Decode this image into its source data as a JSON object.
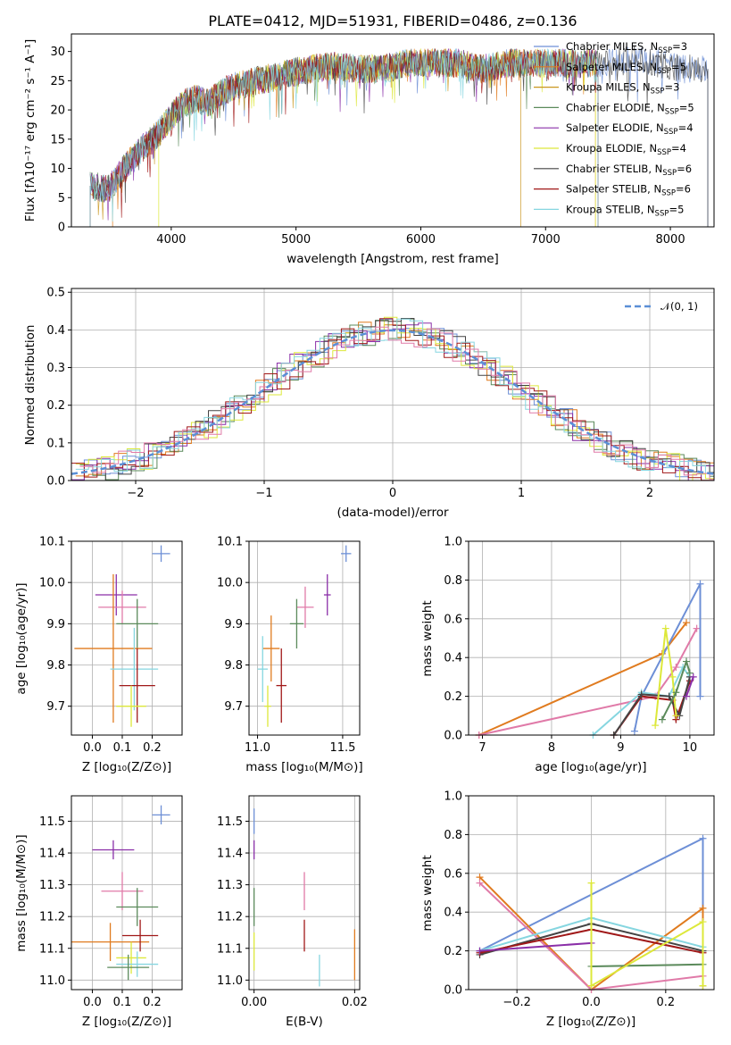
{
  "title": "PLATE=0412, MJD=51931, FIBERID=0486, z=0.136",
  "panels": {
    "spectrum": {
      "xlabel": "wavelength [Angstrom, rest frame]",
      "ylabel": "Flux [fλ10⁻¹⁷ erg cm⁻² s⁻¹ A⁻¹]",
      "xticks": [
        "4000",
        "5000",
        "6000",
        "7000",
        "8000"
      ],
      "yticks": [
        "0",
        "5",
        "10",
        "15",
        "20",
        "25",
        "30"
      ]
    },
    "hist": {
      "xlabel": "(data-model)/error",
      "ylabel": "Normed distribution",
      "xticks": [
        "−2",
        "−1",
        "0",
        "1",
        "2"
      ],
      "yticks": [
        "0.0",
        "0.1",
        "0.2",
        "0.3",
        "0.4",
        "0.5"
      ],
      "legend": "𝒩(0, 1)"
    },
    "age_Z": {
      "xlabel": "Z [log₁₀(Z/Z⊙)]",
      "ylabel": "age  [log₁₀(age/yr)]"
    },
    "age_mass": {
      "xlabel": "mass [log₁₀(M/M⊙)]"
    },
    "weight_age": {
      "xlabel": "age  [log₁₀(age/yr)]",
      "ylabel": "mass weight"
    },
    "mass_Z": {
      "xlabel": "Z [log₁₀(Z/Z⊙)]",
      "ylabel": "mass [log₁₀(M/M⊙)]"
    },
    "mass_ebv": {
      "xlabel": "E(B-V)"
    },
    "weight_Z": {
      "xlabel": "Z [log₁₀(Z/Z⊙)]",
      "ylabel": "mass weight"
    }
  },
  "colors": {
    "Chabrier MILES": "#6d8fd6",
    "Salpeter MILES": "#e07b1f",
    "Kroupa MILES": "#e07b1f",
    "Chabrier ELODIE": "#5b8a5b",
    "Salpeter ELODIE": "#8a2fa8",
    "Kroupa ELODIE": "#cfe84a",
    "Chabrier STELIB": "#444444",
    "Salpeter STELIB": "#a01818",
    "Kroupa STELIB": "#86d6e0",
    "pink": "#e07aa8"
  },
  "legend": [
    {
      "model": "Chabrier MILES",
      "n": "3",
      "color": "#6d8fd6"
    },
    {
      "model": "Salpeter MILES",
      "n": "5",
      "color": "#e07b1f"
    },
    {
      "model": "Kroupa MILES",
      "n": "3",
      "color": "#c9961f"
    },
    {
      "model": "Chabrier ELODIE",
      "n": "5",
      "color": "#5b8a5b"
    },
    {
      "model": "Salpeter ELODIE",
      "n": "4",
      "color": "#8a2fa8"
    },
    {
      "model": "Kroupa ELODIE",
      "n": "4",
      "color": "#dde83a"
    },
    {
      "model": "Chabrier STELIB",
      "n": "6",
      "color": "#444444"
    },
    {
      "model": "Salpeter STELIB",
      "n": "6",
      "color": "#a01818"
    },
    {
      "model": "Kroupa STELIB",
      "n": "5",
      "color": "#86d6e0"
    }
  ],
  "chart_data": [
    {
      "type": "line",
      "xlim": [
        3200,
        8350
      ],
      "ylim": [
        0,
        33
      ],
      "series": [
        {
          "name": "composite",
          "x": [
            3350,
            3500,
            3700,
            3900,
            4000,
            4100,
            4200,
            4300,
            4400,
            4500,
            4700,
            4900,
            5100,
            5300,
            5500,
            5700,
            5900,
            6100,
            6300,
            6500,
            6700,
            6900,
            7100,
            7300,
            7500,
            7700,
            7900,
            8100,
            8300
          ],
          "y": [
            7,
            6.5,
            12,
            16,
            19,
            21,
            22,
            21,
            23,
            24,
            25,
            26,
            27,
            27.5,
            27,
            27,
            28,
            28,
            28,
            27,
            28,
            28,
            28,
            28,
            28,
            29,
            28,
            27,
            27
          ]
        }
      ]
    },
    {
      "type": "bar",
      "xlim": [
        -2.5,
        2.5
      ],
      "ylim": [
        0,
        0.51
      ],
      "gaussian": {
        "mu": 0,
        "sigma": 1
      }
    },
    {
      "type": "scatter",
      "xlim": [
        -0.07,
        0.3
      ],
      "ylim": [
        9.63,
        10.1
      ],
      "points": [
        {
          "x": 0.23,
          "y": 10.07,
          "xerr": 0.03,
          "yerr": 0.02,
          "color": "#6d8fd6"
        },
        {
          "x": 0.08,
          "y": 9.97,
          "xerr": 0.07,
          "yerr": 0.05,
          "color": "#8a2fa8"
        },
        {
          "x": 0.1,
          "y": 9.94,
          "xerr": 0.08,
          "yerr": 0.04,
          "color": "#e07aa8"
        },
        {
          "x": 0.15,
          "y": 9.9,
          "xerr": 0.07,
          "yerr": 0.06,
          "color": "#5b8a5b"
        },
        {
          "x": 0.07,
          "y": 9.84,
          "xerr": 0.13,
          "yerr": 0.18,
          "color": "#e07b1f"
        },
        {
          "x": 0.14,
          "y": 9.79,
          "xerr": 0.08,
          "yerr": 0.1,
          "color": "#86d6e0"
        },
        {
          "x": 0.15,
          "y": 9.75,
          "xerr": 0.06,
          "yerr": 0.09,
          "color": "#a01818"
        },
        {
          "x": 0.13,
          "y": 9.7,
          "xerr": 0.05,
          "yerr": 0.05,
          "color": "#dde83a"
        }
      ],
      "yticks": [
        "9.7",
        "9.8",
        "9.9",
        "10.0",
        "10.1"
      ],
      "xticks": [
        "0.0",
        "0.1",
        "0.2"
      ]
    },
    {
      "type": "scatter",
      "xlim": [
        10.95,
        11.6
      ],
      "ylim": [
        9.63,
        10.1
      ],
      "points": [
        {
          "x": 11.52,
          "y": 10.07,
          "xerr": 0.03,
          "yerr": 0.02,
          "color": "#6d8fd6"
        },
        {
          "x": 11.41,
          "y": 9.97,
          "xerr": 0.02,
          "yerr": 0.05,
          "color": "#8a2fa8"
        },
        {
          "x": 11.28,
          "y": 9.94,
          "xerr": 0.05,
          "yerr": 0.05,
          "color": "#e07aa8"
        },
        {
          "x": 11.23,
          "y": 9.9,
          "xerr": 0.04,
          "yerr": 0.06,
          "color": "#5b8a5b"
        },
        {
          "x": 11.08,
          "y": 9.84,
          "xerr": 0.05,
          "yerr": 0.08,
          "color": "#e07b1f"
        },
        {
          "x": 11.03,
          "y": 9.79,
          "xerr": 0.03,
          "yerr": 0.08,
          "color": "#86d6e0"
        },
        {
          "x": 11.14,
          "y": 9.75,
          "xerr": 0.03,
          "yerr": 0.09,
          "color": "#a01818"
        },
        {
          "x": 11.06,
          "y": 9.7,
          "xerr": 0.02,
          "yerr": 0.05,
          "color": "#dde83a"
        }
      ],
      "yticks": [
        "9.7",
        "9.8",
        "9.9",
        "10.0",
        "10.1"
      ],
      "xticks": [
        "11.0",
        "11.5"
      ]
    },
    {
      "type": "line",
      "xlim": [
        6.8,
        10.35
      ],
      "ylim": [
        0,
        1.0
      ],
      "yticks": [
        "0.0",
        "0.2",
        "0.4",
        "0.6",
        "0.8",
        "1.0"
      ],
      "xticks": [
        "7",
        "8",
        "9",
        "10"
      ],
      "series": [
        {
          "color": "#e07b1f",
          "x": [
            6.95,
            9.6,
            9.95
          ],
          "y": [
            0.0,
            0.42,
            0.58
          ]
        },
        {
          "color": "#e07aa8",
          "x": [
            6.95,
            9.5,
            9.8,
            10.1
          ],
          "y": [
            0.0,
            0.2,
            0.35,
            0.55
          ]
        },
        {
          "color": "#6d8fd6",
          "x": [
            9.2,
            9.3,
            10.15,
            10.15
          ],
          "y": [
            0.02,
            0.2,
            0.78,
            0.2
          ]
        },
        {
          "color": "#86d6e0",
          "x": [
            8.6,
            9.3,
            9.7,
            9.9,
            10.0
          ],
          "y": [
            0.0,
            0.22,
            0.2,
            0.35,
            0.3
          ]
        },
        {
          "color": "#a01818",
          "x": [
            8.9,
            9.3,
            9.75,
            9.8,
            10.0
          ],
          "y": [
            0.0,
            0.2,
            0.18,
            0.08,
            0.28
          ]
        },
        {
          "color": "#444444",
          "x": [
            8.9,
            9.3,
            9.7,
            9.85,
            10.0
          ],
          "y": [
            0.0,
            0.21,
            0.2,
            0.1,
            0.3
          ]
        },
        {
          "color": "#dde83a",
          "x": [
            9.5,
            9.65,
            9.75,
            9.8
          ],
          "y": [
            0.05,
            0.55,
            0.3,
            0.1
          ]
        },
        {
          "color": "#5b8a5b",
          "x": [
            9.6,
            9.8,
            9.95,
            10.0
          ],
          "y": [
            0.08,
            0.22,
            0.38,
            0.32
          ]
        },
        {
          "color": "#8a2fa8",
          "x": [
            9.95,
            10.05
          ],
          "y": [
            0.2,
            0.3
          ]
        }
      ]
    },
    {
      "type": "scatter",
      "xlim": [
        -0.07,
        0.3
      ],
      "ylim": [
        10.97,
        11.58
      ],
      "points": [
        {
          "x": 0.23,
          "y": 11.52,
          "xerr": 0.03,
          "yerr": 0.03,
          "color": "#6d8fd6"
        },
        {
          "x": 0.07,
          "y": 11.41,
          "xerr": 0.07,
          "yerr": 0.03,
          "color": "#8a2fa8"
        },
        {
          "x": 0.1,
          "y": 11.28,
          "xerr": 0.07,
          "yerr": 0.06,
          "color": "#e07aa8"
        },
        {
          "x": 0.15,
          "y": 11.23,
          "xerr": 0.07,
          "yerr": 0.06,
          "color": "#5b8a5b"
        },
        {
          "x": 0.06,
          "y": 11.12,
          "xerr": 0.13,
          "yerr": 0.06,
          "color": "#e07b1f"
        },
        {
          "x": 0.16,
          "y": 11.14,
          "xerr": 0.06,
          "yerr": 0.05,
          "color": "#a01818"
        },
        {
          "x": 0.13,
          "y": 11.07,
          "xerr": 0.05,
          "yerr": 0.05,
          "color": "#dde83a"
        },
        {
          "x": 0.15,
          "y": 11.05,
          "xerr": 0.07,
          "yerr": 0.04,
          "color": "#86d6e0"
        },
        {
          "x": 0.12,
          "y": 11.04,
          "xerr": 0.07,
          "yerr": 0.04,
          "color": "#5b8a5b"
        }
      ],
      "yticks": [
        "11.0",
        "11.1",
        "11.2",
        "11.3",
        "11.4",
        "11.5"
      ],
      "xticks": [
        "0.0",
        "0.1",
        "0.2"
      ]
    },
    {
      "type": "scatter",
      "xlim": [
        -0.001,
        0.021
      ],
      "ylim": [
        10.97,
        11.58
      ],
      "points": [
        {
          "x": 0.0,
          "y": 11.5,
          "yerr": 0.04,
          "color": "#6d8fd6"
        },
        {
          "x": 0.0,
          "y": 11.41,
          "yerr": 0.03,
          "color": "#8a2fa8"
        },
        {
          "x": 0.0,
          "y": 11.23,
          "yerr": 0.06,
          "color": "#5b8a5b"
        },
        {
          "x": 0.0,
          "y": 11.09,
          "yerr": 0.06,
          "color": "#dde83a"
        },
        {
          "x": 0.01,
          "y": 11.28,
          "yerr": 0.06,
          "color": "#e07aa8"
        },
        {
          "x": 0.01,
          "y": 11.14,
          "yerr": 0.05,
          "color": "#a01818"
        },
        {
          "x": 0.013,
          "y": 11.03,
          "yerr": 0.05,
          "color": "#86d6e0"
        },
        {
          "x": 0.02,
          "y": 11.08,
          "yerr": 0.08,
          "color": "#e07b1f"
        }
      ],
      "yticks": [
        "11.0",
        "11.1",
        "11.2",
        "11.3",
        "11.4",
        "11.5"
      ],
      "xticks": [
        "0.00",
        "0.02"
      ]
    },
    {
      "type": "line",
      "xlim": [
        -0.33,
        0.33
      ],
      "ylim": [
        0,
        1.0
      ],
      "yticks": [
        "0.0",
        "0.2",
        "0.4",
        "0.6",
        "0.8",
        "1.0"
      ],
      "xticks": [
        "−0.2",
        "0.0",
        "0.2"
      ],
      "series": [
        {
          "color": "#6d8fd6",
          "x": [
            -0.3,
            0.3,
            0.3
          ],
          "y": [
            0.2,
            0.78,
            0.02
          ]
        },
        {
          "color": "#e07b1f",
          "x": [
            -0.3,
            0.0,
            0.3,
            0.3
          ],
          "y": [
            0.58,
            0.0,
            0.42,
            0.02
          ]
        },
        {
          "color": "#e07aa8",
          "x": [
            -0.3,
            0.0,
            0.3
          ],
          "y": [
            0.55,
            0.0,
            0.07
          ]
        },
        {
          "color": "#86d6e0",
          "x": [
            -0.3,
            0.0,
            0.3
          ],
          "y": [
            0.2,
            0.37,
            0.22
          ]
        },
        {
          "color": "#444444",
          "x": [
            -0.3,
            0.0,
            0.3
          ],
          "y": [
            0.18,
            0.34,
            0.2
          ]
        },
        {
          "color": "#a01818",
          "x": [
            -0.3,
            0.0,
            0.3
          ],
          "y": [
            0.19,
            0.31,
            0.19
          ]
        },
        {
          "color": "#8a2fa8",
          "x": [
            -0.3,
            0.0
          ],
          "y": [
            0.2,
            0.24
          ]
        },
        {
          "color": "#5b8a5b",
          "x": [
            0.0,
            0.3
          ],
          "y": [
            0.12,
            0.13
          ]
        },
        {
          "color": "#dde83a",
          "x": [
            0.0,
            0.0,
            0.3,
            0.3
          ],
          "y": [
            0.55,
            0.02,
            0.35,
            0.02
          ]
        }
      ]
    }
  ]
}
